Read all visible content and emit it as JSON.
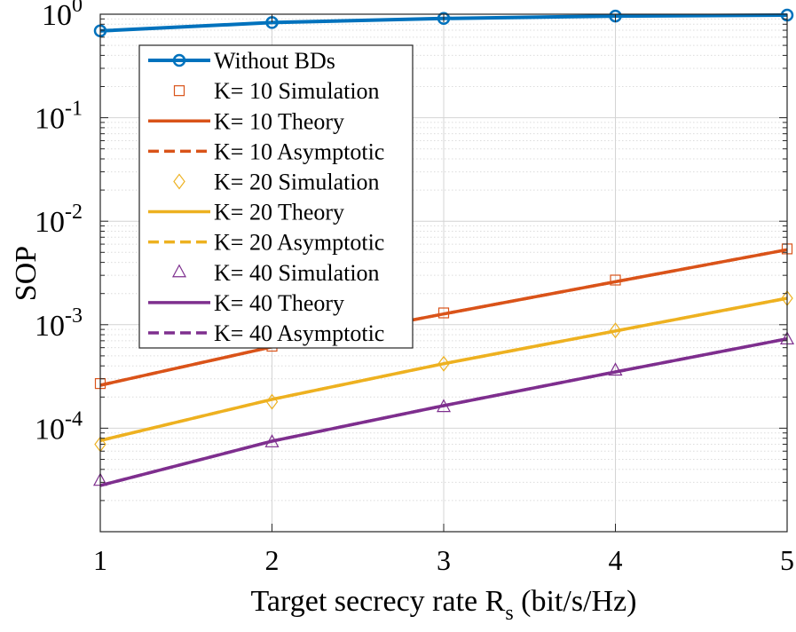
{
  "chart_data": {
    "type": "line",
    "title": "",
    "xlabel": "Target secrecy rate R",
    "xlabel_sub": "s",
    "xlabel_units": " (bit/s/Hz)",
    "ylabel": "SOP",
    "x_scale": "linear",
    "y_scale": "log",
    "xlim": [
      1,
      5
    ],
    "ylim_exp": [
      -5,
      0
    ],
    "x_ticks": [
      1,
      2,
      3,
      4,
      5
    ],
    "x_tick_labels": [
      "1",
      "2",
      "3",
      "4",
      "5"
    ],
    "y_tick_exponents": [
      0,
      -1,
      -2,
      -3,
      -4
    ],
    "y_tick_base": "10",
    "y_tick_exp_labels": [
      "0",
      "-1",
      "-2",
      "-3",
      "-4"
    ],
    "grid": true,
    "legend_position": "top-left",
    "x": [
      1,
      2,
      3,
      4,
      5
    ],
    "series": [
      {
        "name": "Without BDs",
        "style": "solid-circle",
        "color": "#0072BD",
        "values": [
          0.69,
          0.83,
          0.91,
          0.96,
          0.98
        ]
      },
      {
        "name": "K= 10 Simulation",
        "style": "marker-square",
        "color": "#D95319",
        "values": [
          0.00027,
          0.00062,
          0.0013,
          0.0027,
          0.0054
        ]
      },
      {
        "name": "K= 10 Theory",
        "style": "solid",
        "color": "#D95319",
        "values": [
          0.00026,
          0.00061,
          0.00127,
          0.0026,
          0.0053
        ]
      },
      {
        "name": "K= 10 Asymptotic",
        "style": "dashed",
        "color": "#D95319",
        "values": [
          0.00026,
          0.00061,
          0.00127,
          0.0026,
          0.0053
        ]
      },
      {
        "name": "K= 20 Simulation",
        "style": "marker-diamond",
        "color": "#EDB120",
        "values": [
          7e-05,
          0.00018,
          0.00042,
          0.00088,
          0.0018
        ]
      },
      {
        "name": "K= 20 Theory",
        "style": "solid",
        "color": "#EDB120",
        "values": [
          7.6e-05,
          0.00019,
          0.00042,
          0.00087,
          0.0018
        ]
      },
      {
        "name": "K= 20 Asymptotic",
        "style": "dashed",
        "color": "#EDB120",
        "values": [
          7.6e-05,
          0.00019,
          0.00042,
          0.00087,
          0.0018
        ]
      },
      {
        "name": "K= 40 Simulation",
        "style": "marker-triangle",
        "color": "#7E2F8E",
        "values": [
          3.1e-05,
          7.3e-05,
          0.00016,
          0.00036,
          0.00072
        ]
      },
      {
        "name": "K= 40 Theory",
        "style": "solid",
        "color": "#7E2F8E",
        "values": [
          2.8e-05,
          7.5e-05,
          0.000165,
          0.00035,
          0.00073
        ]
      },
      {
        "name": "K= 40 Asymptotic",
        "style": "dashed",
        "color": "#7E2F8E",
        "values": [
          2.8e-05,
          7.5e-05,
          0.000165,
          0.00035,
          0.00073
        ]
      }
    ]
  }
}
